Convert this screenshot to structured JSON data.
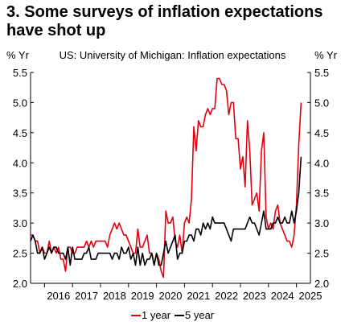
{
  "title": "3. Some surveys of inflation expectations have shot up",
  "left_unit": "% Yr",
  "right_unit": "% Yr",
  "chart_data": {
    "type": "line",
    "subtitle": "US: University of Michigan: Inflation expectations",
    "ylim": [
      2.0,
      5.5
    ],
    "y_ticks": [
      "2.0",
      "2.5",
      "3.0",
      "3.5",
      "4.0",
      "4.5",
      "5.0",
      "5.5"
    ],
    "x_range": [
      "2015-07",
      "2025-07"
    ],
    "x_ticks": [
      "2016",
      "2017",
      "2018",
      "2019",
      "2020",
      "2021",
      "2022",
      "2023",
      "2024",
      "2025"
    ],
    "grid": false,
    "legend_position": "bottom",
    "series": [
      {
        "name": "1 year",
        "color": "#e3000f",
        "points": [
          [
            "2015-07",
            2.8
          ],
          [
            "2015-08",
            2.8
          ],
          [
            "2015-09",
            2.7
          ],
          [
            "2015-10",
            2.7
          ],
          [
            "2015-11",
            2.5
          ],
          [
            "2015-12",
            2.6
          ],
          [
            "2016-01",
            2.5
          ],
          [
            "2016-02",
            2.5
          ],
          [
            "2016-03",
            2.7
          ],
          [
            "2016-04",
            2.5
          ],
          [
            "2016-05",
            2.6
          ],
          [
            "2016-06",
            2.5
          ],
          [
            "2016-07",
            2.6
          ],
          [
            "2016-08",
            2.4
          ],
          [
            "2016-09",
            2.4
          ],
          [
            "2016-10",
            2.2
          ],
          [
            "2016-11",
            2.6
          ],
          [
            "2016-12",
            2.6
          ],
          [
            "2017-01",
            2.5
          ],
          [
            "2017-02",
            2.5
          ],
          [
            "2017-03",
            2.6
          ],
          [
            "2017-04",
            2.6
          ],
          [
            "2017-05",
            2.6
          ],
          [
            "2017-06",
            2.6
          ],
          [
            "2017-07",
            2.7
          ],
          [
            "2017-08",
            2.6
          ],
          [
            "2017-09",
            2.7
          ],
          [
            "2017-10",
            2.6
          ],
          [
            "2017-11",
            2.7
          ],
          [
            "2017-12",
            2.7
          ],
          [
            "2018-01",
            2.7
          ],
          [
            "2018-02",
            2.7
          ],
          [
            "2018-03",
            2.7
          ],
          [
            "2018-04",
            2.6
          ],
          [
            "2018-05",
            2.8
          ],
          [
            "2018-06",
            2.9
          ],
          [
            "2018-07",
            3.0
          ],
          [
            "2018-08",
            2.9
          ],
          [
            "2018-09",
            3.0
          ],
          [
            "2018-10",
            2.9
          ],
          [
            "2018-11",
            2.8
          ],
          [
            "2018-12",
            2.8
          ],
          [
            "2019-01",
            2.7
          ],
          [
            "2019-02",
            2.6
          ],
          [
            "2019-03",
            2.5
          ],
          [
            "2019-04",
            2.5
          ],
          [
            "2019-05",
            2.9
          ],
          [
            "2019-06",
            2.6
          ],
          [
            "2019-07",
            2.6
          ],
          [
            "2019-08",
            2.7
          ],
          [
            "2019-09",
            2.8
          ],
          [
            "2019-10",
            2.5
          ],
          [
            "2019-11",
            2.5
          ],
          [
            "2019-12",
            2.3
          ],
          [
            "2020-01",
            2.5
          ],
          [
            "2020-02",
            2.4
          ],
          [
            "2020-03",
            2.2
          ],
          [
            "2020-04",
            2.1
          ],
          [
            "2020-05",
            3.2
          ],
          [
            "2020-06",
            3.0
          ],
          [
            "2020-07",
            3.0
          ],
          [
            "2020-08",
            3.1
          ],
          [
            "2020-09",
            2.7
          ],
          [
            "2020-10",
            2.6
          ],
          [
            "2020-11",
            2.8
          ],
          [
            "2020-12",
            2.5
          ],
          [
            "2021-01",
            3.0
          ],
          [
            "2021-02",
            3.1
          ],
          [
            "2021-03",
            3.0
          ],
          [
            "2021-04",
            3.4
          ],
          [
            "2021-05",
            4.6
          ],
          [
            "2021-06",
            4.2
          ],
          [
            "2021-07",
            4.7
          ],
          [
            "2021-08",
            4.6
          ],
          [
            "2021-09",
            4.6
          ],
          [
            "2021-10",
            4.8
          ],
          [
            "2021-11",
            4.9
          ],
          [
            "2021-12",
            4.8
          ],
          [
            "2022-01",
            4.9
          ],
          [
            "2022-02",
            4.9
          ],
          [
            "2022-03",
            5.4
          ],
          [
            "2022-04",
            5.4
          ],
          [
            "2022-05",
            5.3
          ],
          [
            "2022-06",
            5.3
          ],
          [
            "2022-07",
            5.2
          ],
          [
            "2022-08",
            4.8
          ],
          [
            "2022-09",
            5.0
          ],
          [
            "2022-10",
            5.0
          ],
          [
            "2022-11",
            4.4
          ],
          [
            "2022-12",
            4.4
          ],
          [
            "2023-01",
            3.9
          ],
          [
            "2023-02",
            4.1
          ],
          [
            "2023-03",
            3.6
          ],
          [
            "2023-04",
            4.7
          ],
          [
            "2023-05",
            4.2
          ],
          [
            "2023-06",
            3.3
          ],
          [
            "2023-07",
            3.4
          ],
          [
            "2023-08",
            3.5
          ],
          [
            "2023-09",
            3.2
          ],
          [
            "2023-10",
            4.2
          ],
          [
            "2023-11",
            4.5
          ],
          [
            "2023-12",
            3.1
          ],
          [
            "2024-01",
            2.9
          ],
          [
            "2024-02",
            3.0
          ],
          [
            "2024-03",
            2.9
          ],
          [
            "2024-04",
            3.2
          ],
          [
            "2024-05",
            3.3
          ],
          [
            "2024-06",
            3.0
          ],
          [
            "2024-07",
            2.9
          ],
          [
            "2024-08",
            2.8
          ],
          [
            "2024-09",
            2.7
          ],
          [
            "2024-10",
            2.7
          ],
          [
            "2024-11",
            2.6
          ],
          [
            "2024-12",
            2.8
          ],
          [
            "2025-01",
            3.3
          ],
          [
            "2025-02",
            4.3
          ],
          [
            "2025-03",
            5.0
          ]
        ]
      },
      {
        "name": "5 year",
        "color": "#000000",
        "points": [
          [
            "2015-07",
            2.7
          ],
          [
            "2015-08",
            2.8
          ],
          [
            "2015-09",
            2.7
          ],
          [
            "2015-10",
            2.5
          ],
          [
            "2015-11",
            2.5
          ],
          [
            "2015-12",
            2.6
          ],
          [
            "2016-01",
            2.4
          ],
          [
            "2016-02",
            2.5
          ],
          [
            "2016-03",
            2.6
          ],
          [
            "2016-04",
            2.5
          ],
          [
            "2016-05",
            2.6
          ],
          [
            "2016-06",
            2.6
          ],
          [
            "2016-07",
            2.5
          ],
          [
            "2016-08",
            2.5
          ],
          [
            "2016-09",
            2.5
          ],
          [
            "2016-10",
            2.4
          ],
          [
            "2016-11",
            2.6
          ],
          [
            "2016-12",
            2.3
          ],
          [
            "2017-01",
            2.6
          ],
          [
            "2017-02",
            2.4
          ],
          [
            "2017-03",
            2.4
          ],
          [
            "2017-04",
            2.4
          ],
          [
            "2017-05",
            2.4
          ],
          [
            "2017-06",
            2.5
          ],
          [
            "2017-07",
            2.5
          ],
          [
            "2017-08",
            2.6
          ],
          [
            "2017-09",
            2.4
          ],
          [
            "2017-10",
            2.4
          ],
          [
            "2017-11",
            2.4
          ],
          [
            "2017-12",
            2.5
          ],
          [
            "2018-01",
            2.5
          ],
          [
            "2018-02",
            2.5
          ],
          [
            "2018-03",
            2.5
          ],
          [
            "2018-04",
            2.5
          ],
          [
            "2018-05",
            2.5
          ],
          [
            "2018-06",
            2.4
          ],
          [
            "2018-07",
            2.5
          ],
          [
            "2018-08",
            2.5
          ],
          [
            "2018-09",
            2.4
          ],
          [
            "2018-10",
            2.6
          ],
          [
            "2018-11",
            2.5
          ],
          [
            "2018-12",
            2.5
          ],
          [
            "2019-01",
            2.6
          ],
          [
            "2019-02",
            2.4
          ],
          [
            "2019-03",
            2.5
          ],
          [
            "2019-04",
            2.3
          ],
          [
            "2019-05",
            2.6
          ],
          [
            "2019-06",
            2.3
          ],
          [
            "2019-07",
            2.5
          ],
          [
            "2019-08",
            2.3
          ],
          [
            "2019-09",
            2.4
          ],
          [
            "2019-10",
            2.4
          ],
          [
            "2019-11",
            2.5
          ],
          [
            "2019-12",
            2.3
          ],
          [
            "2020-01",
            2.5
          ],
          [
            "2020-02",
            2.3
          ],
          [
            "2020-03",
            2.3
          ],
          [
            "2020-04",
            2.5
          ],
          [
            "2020-05",
            2.7
          ],
          [
            "2020-06",
            2.5
          ],
          [
            "2020-07",
            2.6
          ],
          [
            "2020-08",
            2.7
          ],
          [
            "2020-09",
            2.8
          ],
          [
            "2020-10",
            2.4
          ],
          [
            "2020-11",
            2.5
          ],
          [
            "2020-12",
            2.5
          ],
          [
            "2021-01",
            2.7
          ],
          [
            "2021-02",
            2.7
          ],
          [
            "2021-03",
            2.8
          ],
          [
            "2021-04",
            2.8
          ],
          [
            "2021-05",
            2.7
          ],
          [
            "2021-06",
            2.9
          ],
          [
            "2021-07",
            2.9
          ],
          [
            "2021-08",
            2.8
          ],
          [
            "2021-09",
            3.0
          ],
          [
            "2021-10",
            2.9
          ],
          [
            "2021-11",
            3.0
          ],
          [
            "2021-12",
            2.9
          ],
          [
            "2022-01",
            3.1
          ],
          [
            "2022-02",
            3.0
          ],
          [
            "2022-03",
            3.0
          ],
          [
            "2022-04",
            3.0
          ],
          [
            "2022-05",
            3.0
          ],
          [
            "2022-06",
            3.0
          ],
          [
            "2022-07",
            2.9
          ],
          [
            "2022-08",
            2.8
          ],
          [
            "2022-09",
            2.7
          ],
          [
            "2022-10",
            2.9
          ],
          [
            "2022-11",
            2.9
          ],
          [
            "2022-12",
            2.9
          ],
          [
            "2023-01",
            2.9
          ],
          [
            "2023-02",
            2.9
          ],
          [
            "2023-03",
            2.9
          ],
          [
            "2023-04",
            3.0
          ],
          [
            "2023-05",
            3.1
          ],
          [
            "2023-06",
            3.0
          ],
          [
            "2023-07",
            3.0
          ],
          [
            "2023-08",
            2.9
          ],
          [
            "2023-09",
            2.8
          ],
          [
            "2023-10",
            3.0
          ],
          [
            "2023-11",
            3.2
          ],
          [
            "2023-12",
            2.9
          ],
          [
            "2024-01",
            2.9
          ],
          [
            "2024-02",
            2.9
          ],
          [
            "2024-03",
            3.0
          ],
          [
            "2024-04",
            3.0
          ],
          [
            "2024-05",
            3.1
          ],
          [
            "2024-06",
            3.0
          ],
          [
            "2024-07",
            3.0
          ],
          [
            "2024-08",
            3.1
          ],
          [
            "2024-09",
            3.0
          ],
          [
            "2024-10",
            3.0
          ],
          [
            "2024-11",
            3.2
          ],
          [
            "2024-12",
            3.0
          ],
          [
            "2025-01",
            3.2
          ],
          [
            "2025-02",
            3.5
          ],
          [
            "2025-03",
            4.1
          ]
        ]
      }
    ]
  }
}
